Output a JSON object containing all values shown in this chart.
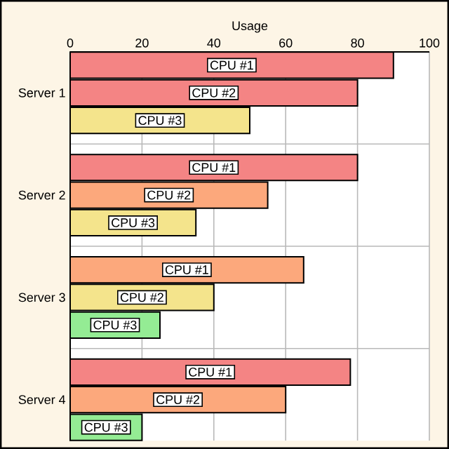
{
  "chart_data": {
    "type": "bar",
    "orientation": "horizontal",
    "xlabel": "Usage",
    "categories": [
      "Server 1",
      "Server 2",
      "Server 3",
      "Server 4"
    ],
    "series": [
      {
        "name": "CPU #1",
        "values": [
          90,
          80,
          65,
          78
        ],
        "colors": [
          "#f48484",
          "#f48484",
          "#fca87c",
          "#f48484"
        ]
      },
      {
        "name": "CPU #2",
        "values": [
          80,
          55,
          40,
          60
        ],
        "colors": [
          "#f48484",
          "#fca87c",
          "#f4e48c",
          "#fca87c"
        ]
      },
      {
        "name": "CPU #3",
        "values": [
          50,
          35,
          25,
          20
        ],
        "colors": [
          "#f4e48c",
          "#f4e48c",
          "#94ec94",
          "#94ec94"
        ]
      }
    ],
    "xlim": [
      0,
      100
    ],
    "xticks": [
      0,
      20,
      40,
      60,
      80,
      100
    ],
    "grid": true
  }
}
